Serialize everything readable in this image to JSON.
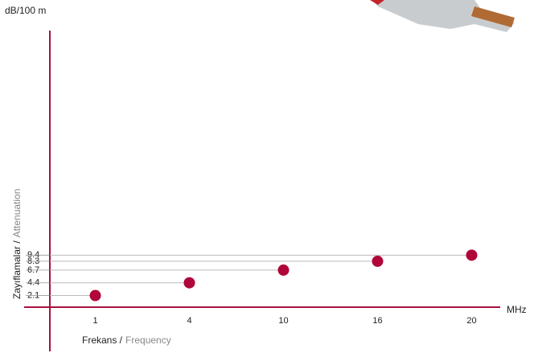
{
  "chart_data": {
    "type": "scatter",
    "y_unit": "dB/100 m",
    "x_unit": "MHz",
    "y_label": {
      "primary": "Zayıflamalar /",
      "secondary": "Attenuation"
    },
    "x_label": {
      "primary": "Frekans /",
      "secondary": "Frequency"
    },
    "categories": [
      "1",
      "4",
      "10",
      "16",
      "20"
    ],
    "values": [
      2.1,
      4.4,
      6.7,
      8.3,
      9.4
    ],
    "color": "#b0063a",
    "axis_color": "#a8103f",
    "ylim": [
      0,
      50
    ],
    "yticks": [
      2.1,
      4.4,
      6.7,
      8.3,
      9.4
    ],
    "grid": true
  }
}
